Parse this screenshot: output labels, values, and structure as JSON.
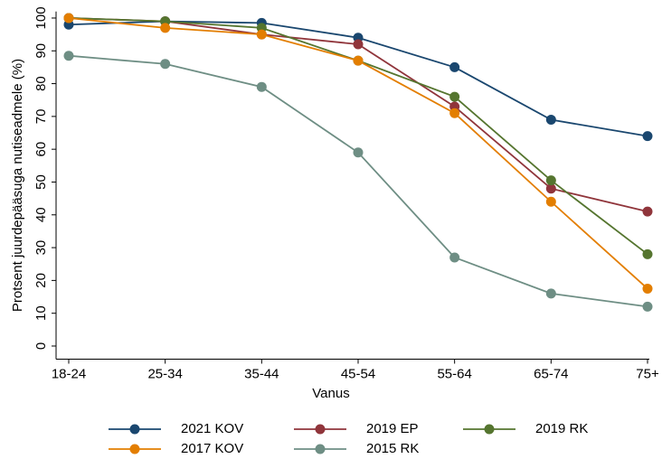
{
  "chart_data": {
    "type": "line",
    "x_label": "Vanus",
    "y_label": "Protsent juurdepääsuga nutiseadmele (%)",
    "categories": [
      "18-24",
      "25-34",
      "35-44",
      "45-54",
      "55-64",
      "65-74",
      "75+"
    ],
    "series": [
      {
        "name": "2021 KOV",
        "color": "#1a476f",
        "values": [
          98,
          99,
          98.5,
          94,
          85,
          69,
          64
        ]
      },
      {
        "name": "2019 EP",
        "color": "#90353b",
        "values": [
          100,
          99,
          95,
          92,
          73,
          48,
          41
        ]
      },
      {
        "name": "2019 RK",
        "color": "#55752f",
        "values": [
          100,
          99,
          97,
          87,
          76,
          50.5,
          28
        ]
      },
      {
        "name": "2017 KOV",
        "color": "#e37e00",
        "values": [
          100,
          97,
          95,
          87,
          71,
          44,
          17.5
        ]
      },
      {
        "name": "2015 RK",
        "color": "#6e8e84",
        "values": [
          88.5,
          86,
          79,
          59,
          27,
          16,
          12
        ]
      }
    ],
    "ylim": [
      -4,
      102
    ],
    "yticks": [
      0,
      10,
      20,
      30,
      40,
      50,
      60,
      70,
      80,
      90,
      100
    ],
    "grid": false,
    "legend": "bottom"
  }
}
